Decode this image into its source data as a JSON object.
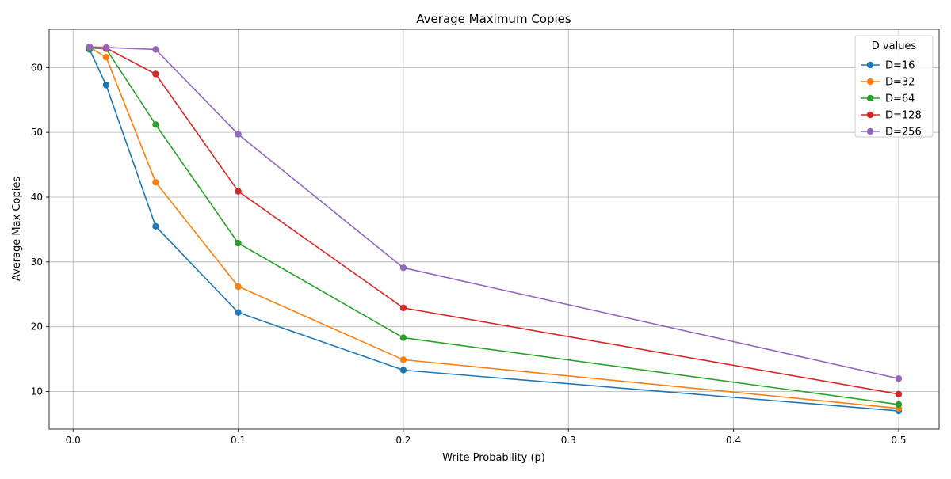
{
  "chart_data": {
    "type": "line",
    "title": "Average Maximum Copies",
    "xlabel": "Write Probability (p)",
    "ylabel": "Average Max Copies",
    "x": [
      0.01,
      0.02,
      0.05,
      0.1,
      0.2,
      0.5
    ],
    "xlim": [
      -0.0145,
      0.5245
    ],
    "ylim": [
      4.2,
      65.9
    ],
    "xticks": [
      0.0,
      0.1,
      0.2,
      0.3,
      0.4,
      0.5
    ],
    "xtick_labels": [
      "0.0",
      "0.1",
      "0.2",
      "0.3",
      "0.4",
      "0.5"
    ],
    "yticks": [
      10,
      20,
      30,
      40,
      50,
      60
    ],
    "ytick_labels": [
      "10",
      "20",
      "30",
      "40",
      "50",
      "60"
    ],
    "grid": true,
    "markers": "circle",
    "legend": {
      "title": "D values",
      "position": "top-right"
    },
    "series": [
      {
        "name": "D=16",
        "color": "#1f77b4",
        "values": [
          62.8,
          57.3,
          35.5,
          22.2,
          13.3,
          7.0
        ]
      },
      {
        "name": "D=32",
        "color": "#ff7f0e",
        "values": [
          63.1,
          61.6,
          42.3,
          26.2,
          14.9,
          7.4
        ]
      },
      {
        "name": "D=64",
        "color": "#2ca02c",
        "values": [
          63.0,
          62.9,
          51.2,
          32.9,
          18.3,
          8.0
        ]
      },
      {
        "name": "D=128",
        "color": "#d62728",
        "values": [
          63.2,
          63.0,
          59.0,
          40.9,
          22.9,
          9.6
        ]
      },
      {
        "name": "D=256",
        "color": "#9467bd",
        "values": [
          63.2,
          63.1,
          62.8,
          49.7,
          29.1,
          12.0
        ]
      }
    ]
  }
}
